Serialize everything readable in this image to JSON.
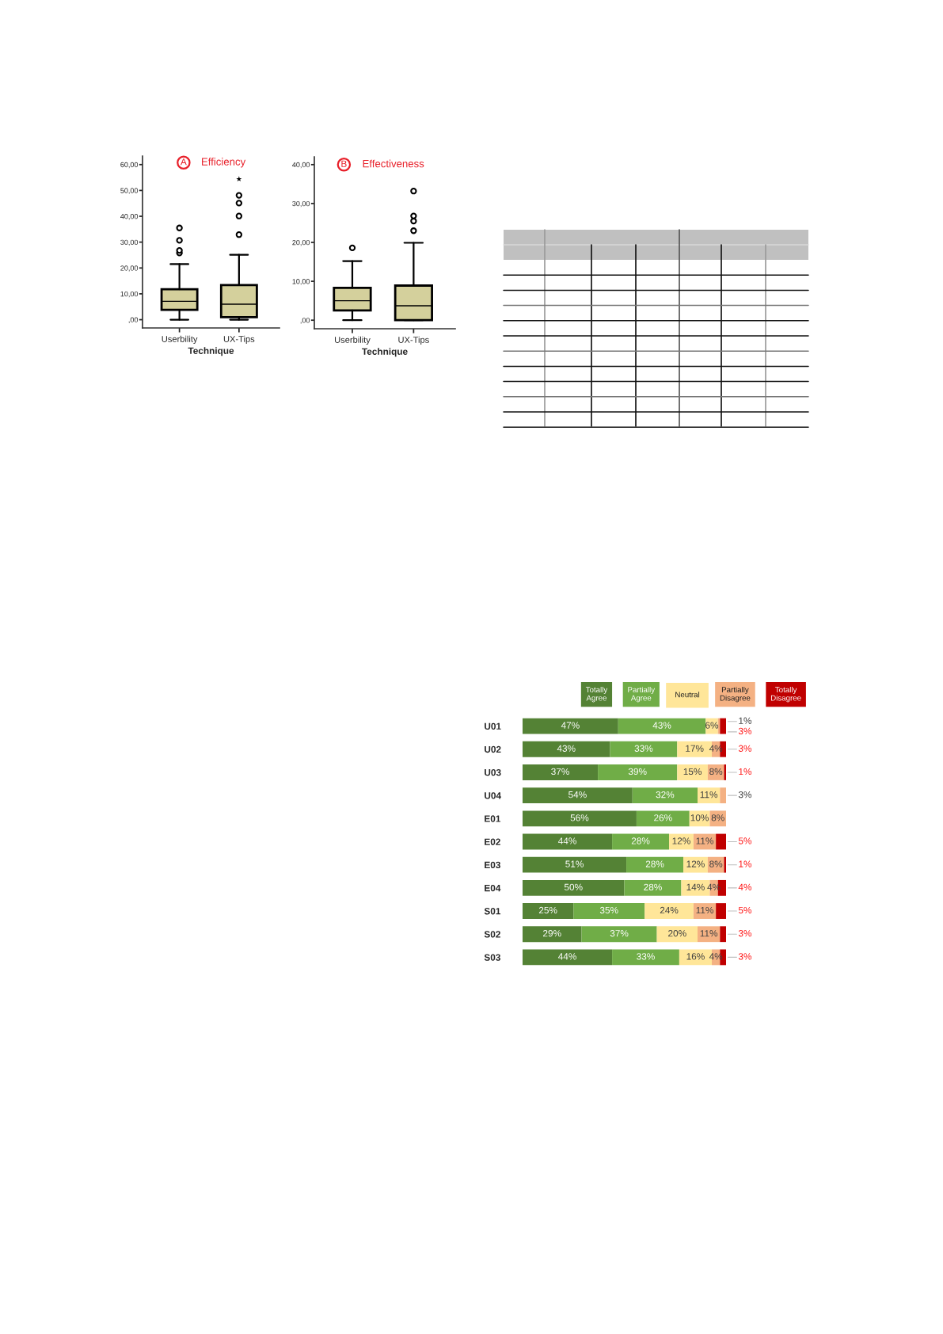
{
  "chart_data": [
    {
      "type": "box",
      "title": "Efficiency",
      "annotations": [
        "A"
      ],
      "xlabel": "Technique",
      "categories": [
        "Userbility",
        "UX-Tips"
      ],
      "color": "#d4d09c",
      "boxes": [
        {
          "low": 0,
          "q1": 3.8,
          "median": 7.1,
          "q3": 11.8,
          "high": 21.5,
          "outliers": [
            25.8,
            26.8,
            30.7,
            35.5
          ]
        },
        {
          "low": 0,
          "q1": 1.0,
          "median": 6.0,
          "q3": 13.4,
          "high": 25.1,
          "outliers": [
            32.9,
            40.1,
            45.1,
            48.1
          ]
        }
      ],
      "series": [
        {
          "type": "scatter",
          "x": [
            "UX-Tips"
          ],
          "values": [
            54.4
          ],
          "marker": "star",
          "color": "#000000"
        }
      ],
      "ylim": [
        -3.2,
        63.3
      ],
      "yticks": [
        {
          "value": 0,
          "label": ",00"
        },
        {
          "value": 10,
          "label": "10,00"
        },
        {
          "value": 20,
          "label": "20,00"
        },
        {
          "value": 30,
          "label": "30,00"
        },
        {
          "value": 40,
          "label": "40,00"
        },
        {
          "value": 50,
          "label": "50,00"
        },
        {
          "value": 60,
          "label": "60,00"
        }
      ]
    },
    {
      "type": "box",
      "title": "Effectiveness",
      "annotations": [
        "B"
      ],
      "xlabel": "Technique",
      "categories": [
        "Userbility",
        "UX-Tips"
      ],
      "color": "#d4d09c",
      "boxes": [
        {
          "low": 0,
          "q1": 2.5,
          "median": 5.0,
          "q3": 8.3,
          "high": 15.2,
          "outliers": [
            18.6
          ]
        },
        {
          "low": 0,
          "q1": 0,
          "median": 3.7,
          "q3": 8.9,
          "high": 19.9,
          "outliers": [
            23.0,
            25.5,
            26.8,
            33.2
          ]
        }
      ],
      "ylim": [
        -2.2,
        42.0
      ],
      "yticks": [
        {
          "value": 0,
          "label": ",00"
        },
        {
          "value": 10,
          "label": "10,00"
        },
        {
          "value": 20,
          "label": "20,00"
        },
        {
          "value": 30,
          "label": "30,00"
        },
        {
          "value": 40,
          "label": "40,00"
        }
      ]
    },
    {
      "type": "bar",
      "orientation": "horizontal",
      "stacked": true,
      "tick_labels": "y",
      "legend": "top",
      "categories": [
        "U01",
        "U02",
        "U03",
        "U04",
        "E01",
        "E02",
        "E03",
        "E04",
        "S01",
        "S02",
        "S03"
      ],
      "series": [
        {
          "name": "Totally Agree",
          "color": "#548235",
          "values": [
            47,
            43,
            37,
            54,
            56,
            44,
            51,
            50,
            25,
            29,
            44
          ],
          "value_labels": [
            "47%",
            "43%",
            "37%",
            "54%",
            "56%",
            "44%",
            "51%",
            "50%",
            "25%",
            "29%",
            "44%"
          ]
        },
        {
          "name": "Partially Agree",
          "color": "#70ad47",
          "values": [
            43,
            33,
            39,
            32,
            26,
            28,
            28,
            28,
            35,
            37,
            33
          ],
          "value_labels": [
            "43%",
            "33%",
            "39%",
            "32%",
            "26%",
            "28%",
            "28%",
            "28%",
            "35%",
            "37%",
            "33%"
          ]
        },
        {
          "name": "Neutral",
          "color": "#ffe699",
          "values": [
            6,
            17,
            15,
            11,
            10,
            12,
            12,
            14,
            24,
            20,
            16
          ],
          "value_labels": [
            "6%",
            "17%",
            "15%",
            "11%",
            "10%",
            "12%",
            "12%",
            "14%",
            "24%",
            "20%",
            "16%"
          ]
        },
        {
          "name": "Partially Disagree",
          "color": "#f4b183",
          "values": [
            1,
            4,
            8,
            3,
            8,
            11,
            8,
            4,
            11,
            11,
            4
          ],
          "value_labels": [
            "1%",
            "4%",
            "8%",
            "3%",
            "8%",
            "11%",
            "8%",
            "4%",
            "11%",
            "11%",
            "4%"
          ]
        },
        {
          "name": "Totally Disagree",
          "color": "#c00000",
          "values": [
            3,
            3,
            1,
            null,
            null,
            5,
            1,
            4,
            5,
            3,
            3
          ],
          "value_labels": [
            "3%",
            "3%",
            "1%",
            null,
            null,
            "5%",
            "1%",
            "4%",
            "5%",
            "3%",
            "3%"
          ]
        }
      ]
    }
  ]
}
